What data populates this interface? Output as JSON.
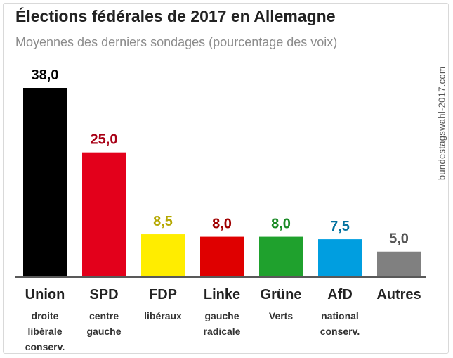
{
  "title": "Élections fédérales de 2017 en Allemagne",
  "subtitle": "Moyennes des derniers sondages (pourcentage des voix)",
  "source": "bundestagswahl-2017.com",
  "chart_data": {
    "type": "bar",
    "title": "Élections fédérales de 2017 en Allemagne",
    "subtitle": "Moyennes des derniers sondages (pourcentage des voix)",
    "xlabel": "",
    "ylabel": "",
    "ylim": [
      0,
      38
    ],
    "grid": false,
    "categories": [
      "Union",
      "SPD",
      "FDP",
      "Linke",
      "Grüne",
      "AfD",
      "Autres"
    ],
    "descriptions": [
      [
        "droite",
        "libérale",
        "conserv."
      ],
      [
        "centre",
        "gauche"
      ],
      [
        "libéraux"
      ],
      [
        "gauche",
        "radicale"
      ],
      [
        "Verts"
      ],
      [
        "national",
        "conserv."
      ],
      []
    ],
    "values": [
      38.0,
      25.0,
      8.5,
      8.0,
      8.0,
      7.5,
      5.0
    ],
    "value_labels": [
      "38,0",
      "25,0",
      "8,5",
      "8,0",
      "8,0",
      "7,5",
      "5,0"
    ],
    "colors": [
      "#000000",
      "#e3001b",
      "#ffed00",
      "#df0000",
      "#1fa12d",
      "#009ee0",
      "#808080"
    ],
    "label_colors": [
      "#000000",
      "#a80016",
      "#b5a800",
      "#a00000",
      "#1a8a25",
      "#00719f",
      "#555555"
    ]
  }
}
